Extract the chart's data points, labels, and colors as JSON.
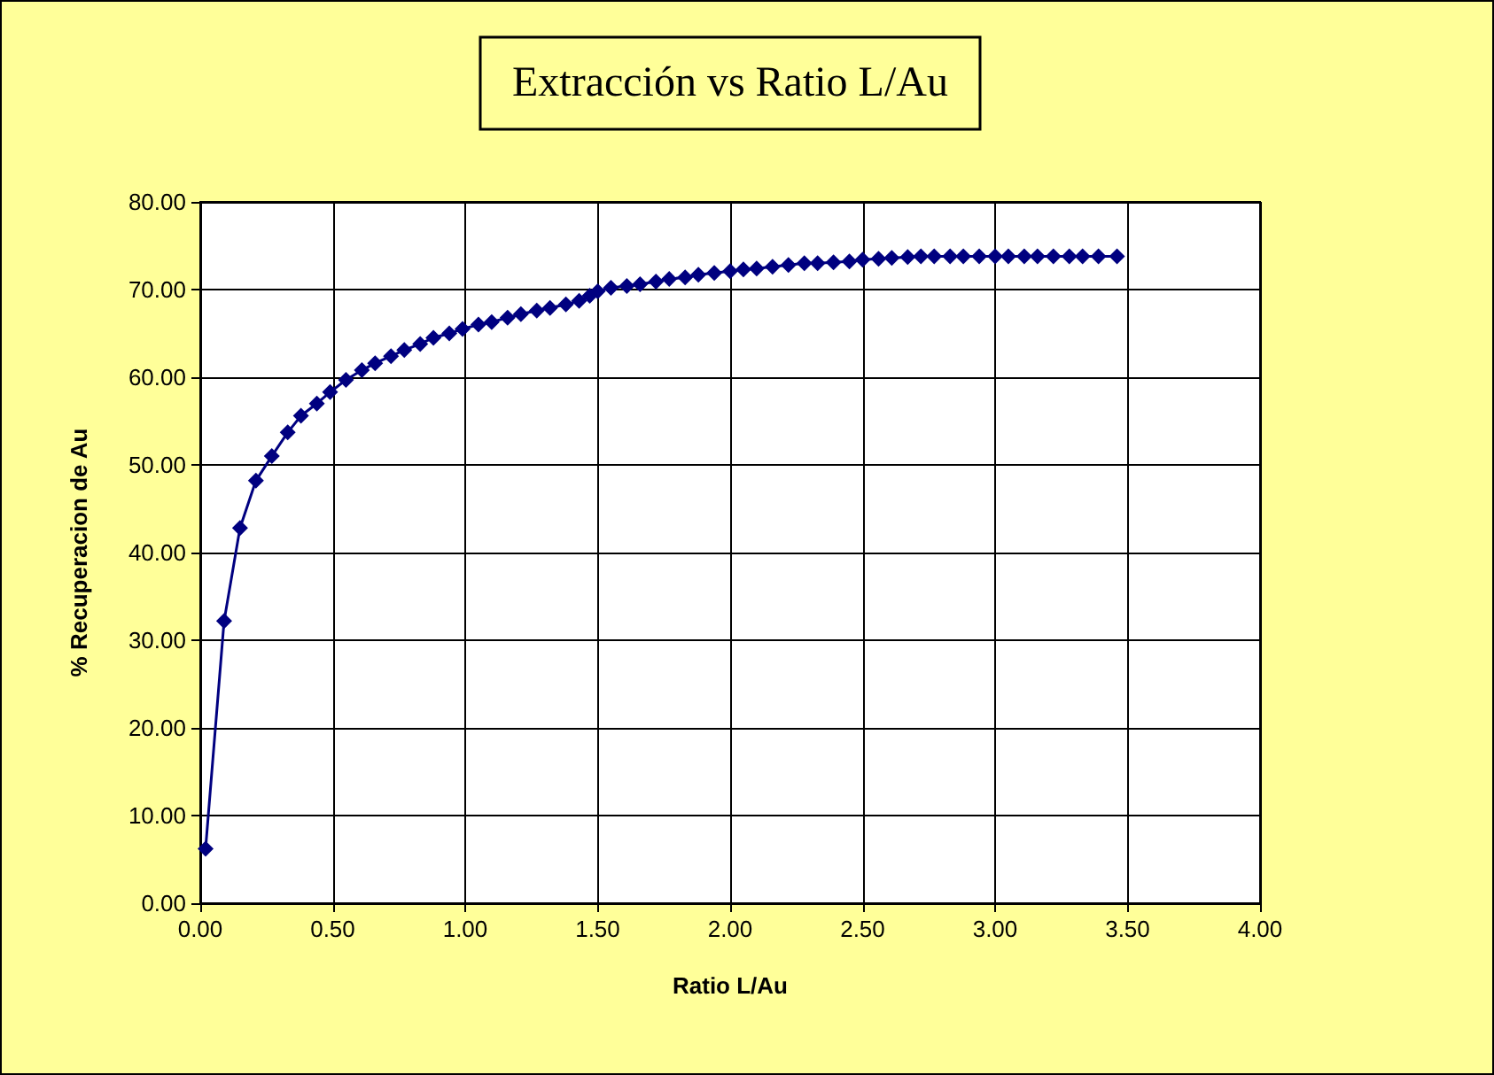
{
  "chart_data": {
    "type": "line",
    "title": "Extracción vs Ratio L/Au",
    "xlabel": "Ratio L/Au",
    "ylabel": "% Recuperacion de Au",
    "marker": "diamond",
    "grid": true,
    "xlim": [
      0,
      4
    ],
    "xticks": [
      {
        "value": 0,
        "label": "0.00"
      },
      {
        "value": 0.5,
        "label": "0.50"
      },
      {
        "value": 1,
        "label": "1.00"
      },
      {
        "value": 1.5,
        "label": "1.50"
      },
      {
        "value": 2,
        "label": "2.00"
      },
      {
        "value": 2.5,
        "label": "2.50"
      },
      {
        "value": 3,
        "label": "3.00"
      },
      {
        "value": 3.5,
        "label": "3.50"
      },
      {
        "value": 4,
        "label": "4.00"
      }
    ],
    "ylim": [
      0,
      80
    ],
    "yticks": [
      {
        "value": 0,
        "label": "0.00"
      },
      {
        "value": 10,
        "label": "10.00"
      },
      {
        "value": 20,
        "label": "20.00"
      },
      {
        "value": 30,
        "label": "30.00"
      },
      {
        "value": 40,
        "label": "40.00"
      },
      {
        "value": 50,
        "label": "50.00"
      },
      {
        "value": 60,
        "label": "60.00"
      },
      {
        "value": 70,
        "label": "70.00"
      },
      {
        "value": 80,
        "label": "80.00"
      }
    ],
    "series": [
      {
        "color": "#000080",
        "x": [
          0.02,
          0.09,
          0.15,
          0.21,
          0.27,
          0.33,
          0.38,
          0.44,
          0.49,
          0.55,
          0.61,
          0.66,
          0.72,
          0.77,
          0.83,
          0.88,
          0.94,
          0.99,
          1.05,
          1.1,
          1.16,
          1.21,
          1.27,
          1.32,
          1.38,
          1.43,
          1.47,
          1.5,
          1.55,
          1.61,
          1.66,
          1.72,
          1.77,
          1.83,
          1.88,
          1.94,
          2.0,
          2.05,
          2.1,
          2.16,
          2.22,
          2.28,
          2.33,
          2.39,
          2.45,
          2.5,
          2.56,
          2.61,
          2.67,
          2.72,
          2.77,
          2.83,
          2.88,
          2.94,
          3.0,
          3.05,
          3.11,
          3.16,
          3.22,
          3.28,
          3.33,
          3.39,
          3.46
        ],
        "values": [
          6.2,
          32.2,
          42.8,
          48.2,
          51.0,
          53.7,
          55.6,
          57.0,
          58.3,
          59.7,
          60.8,
          61.6,
          62.4,
          63.1,
          63.8,
          64.5,
          65.0,
          65.5,
          66.0,
          66.3,
          66.8,
          67.2,
          67.6,
          67.9,
          68.3,
          68.7,
          69.3,
          69.8,
          70.2,
          70.4,
          70.6,
          70.9,
          71.2,
          71.4,
          71.7,
          71.9,
          72.1,
          72.3,
          72.4,
          72.6,
          72.8,
          73.0,
          73.0,
          73.1,
          73.2,
          73.4,
          73.5,
          73.6,
          73.7,
          73.8,
          73.8,
          73.8,
          73.8,
          73.8,
          73.8,
          73.8,
          73.8,
          73.8,
          73.8,
          73.8,
          73.8,
          73.8,
          73.8
        ]
      }
    ]
  }
}
